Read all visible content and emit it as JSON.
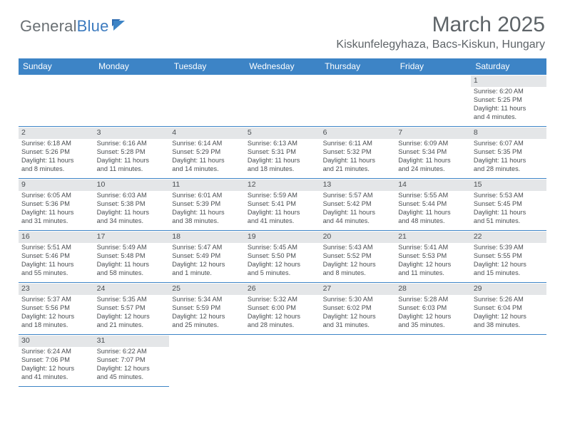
{
  "brand": {
    "part1": "General",
    "part2": "Blue"
  },
  "title": "March 2025",
  "location": "Kiskunfelegyhaza, Bacs-Kiskun, Hungary",
  "colors": {
    "header_bg": "#3d84c6",
    "header_text": "#ffffff",
    "daynum_bg": "#e4e6e8",
    "text": "#4a4e52",
    "title_text": "#5e6468",
    "logo_gray": "#6a7074",
    "logo_blue": "#3d7bbf",
    "border": "#3d84c6"
  },
  "day_headers": [
    "Sunday",
    "Monday",
    "Tuesday",
    "Wednesday",
    "Thursday",
    "Friday",
    "Saturday"
  ],
  "weeks": [
    [
      null,
      null,
      null,
      null,
      null,
      null,
      {
        "n": "1",
        "sr": "Sunrise: 6:20 AM",
        "ss": "Sunset: 5:25 PM",
        "d1": "Daylight: 11 hours",
        "d2": "and 4 minutes."
      }
    ],
    [
      {
        "n": "2",
        "sr": "Sunrise: 6:18 AM",
        "ss": "Sunset: 5:26 PM",
        "d1": "Daylight: 11 hours",
        "d2": "and 8 minutes."
      },
      {
        "n": "3",
        "sr": "Sunrise: 6:16 AM",
        "ss": "Sunset: 5:28 PM",
        "d1": "Daylight: 11 hours",
        "d2": "and 11 minutes."
      },
      {
        "n": "4",
        "sr": "Sunrise: 6:14 AM",
        "ss": "Sunset: 5:29 PM",
        "d1": "Daylight: 11 hours",
        "d2": "and 14 minutes."
      },
      {
        "n": "5",
        "sr": "Sunrise: 6:13 AM",
        "ss": "Sunset: 5:31 PM",
        "d1": "Daylight: 11 hours",
        "d2": "and 18 minutes."
      },
      {
        "n": "6",
        "sr": "Sunrise: 6:11 AM",
        "ss": "Sunset: 5:32 PM",
        "d1": "Daylight: 11 hours",
        "d2": "and 21 minutes."
      },
      {
        "n": "7",
        "sr": "Sunrise: 6:09 AM",
        "ss": "Sunset: 5:34 PM",
        "d1": "Daylight: 11 hours",
        "d2": "and 24 minutes."
      },
      {
        "n": "8",
        "sr": "Sunrise: 6:07 AM",
        "ss": "Sunset: 5:35 PM",
        "d1": "Daylight: 11 hours",
        "d2": "and 28 minutes."
      }
    ],
    [
      {
        "n": "9",
        "sr": "Sunrise: 6:05 AM",
        "ss": "Sunset: 5:36 PM",
        "d1": "Daylight: 11 hours",
        "d2": "and 31 minutes."
      },
      {
        "n": "10",
        "sr": "Sunrise: 6:03 AM",
        "ss": "Sunset: 5:38 PM",
        "d1": "Daylight: 11 hours",
        "d2": "and 34 minutes."
      },
      {
        "n": "11",
        "sr": "Sunrise: 6:01 AM",
        "ss": "Sunset: 5:39 PM",
        "d1": "Daylight: 11 hours",
        "d2": "and 38 minutes."
      },
      {
        "n": "12",
        "sr": "Sunrise: 5:59 AM",
        "ss": "Sunset: 5:41 PM",
        "d1": "Daylight: 11 hours",
        "d2": "and 41 minutes."
      },
      {
        "n": "13",
        "sr": "Sunrise: 5:57 AM",
        "ss": "Sunset: 5:42 PM",
        "d1": "Daylight: 11 hours",
        "d2": "and 44 minutes."
      },
      {
        "n": "14",
        "sr": "Sunrise: 5:55 AM",
        "ss": "Sunset: 5:44 PM",
        "d1": "Daylight: 11 hours",
        "d2": "and 48 minutes."
      },
      {
        "n": "15",
        "sr": "Sunrise: 5:53 AM",
        "ss": "Sunset: 5:45 PM",
        "d1": "Daylight: 11 hours",
        "d2": "and 51 minutes."
      }
    ],
    [
      {
        "n": "16",
        "sr": "Sunrise: 5:51 AM",
        "ss": "Sunset: 5:46 PM",
        "d1": "Daylight: 11 hours",
        "d2": "and 55 minutes."
      },
      {
        "n": "17",
        "sr": "Sunrise: 5:49 AM",
        "ss": "Sunset: 5:48 PM",
        "d1": "Daylight: 11 hours",
        "d2": "and 58 minutes."
      },
      {
        "n": "18",
        "sr": "Sunrise: 5:47 AM",
        "ss": "Sunset: 5:49 PM",
        "d1": "Daylight: 12 hours",
        "d2": "and 1 minute."
      },
      {
        "n": "19",
        "sr": "Sunrise: 5:45 AM",
        "ss": "Sunset: 5:50 PM",
        "d1": "Daylight: 12 hours",
        "d2": "and 5 minutes."
      },
      {
        "n": "20",
        "sr": "Sunrise: 5:43 AM",
        "ss": "Sunset: 5:52 PM",
        "d1": "Daylight: 12 hours",
        "d2": "and 8 minutes."
      },
      {
        "n": "21",
        "sr": "Sunrise: 5:41 AM",
        "ss": "Sunset: 5:53 PM",
        "d1": "Daylight: 12 hours",
        "d2": "and 11 minutes."
      },
      {
        "n": "22",
        "sr": "Sunrise: 5:39 AM",
        "ss": "Sunset: 5:55 PM",
        "d1": "Daylight: 12 hours",
        "d2": "and 15 minutes."
      }
    ],
    [
      {
        "n": "23",
        "sr": "Sunrise: 5:37 AM",
        "ss": "Sunset: 5:56 PM",
        "d1": "Daylight: 12 hours",
        "d2": "and 18 minutes."
      },
      {
        "n": "24",
        "sr": "Sunrise: 5:35 AM",
        "ss": "Sunset: 5:57 PM",
        "d1": "Daylight: 12 hours",
        "d2": "and 21 minutes."
      },
      {
        "n": "25",
        "sr": "Sunrise: 5:34 AM",
        "ss": "Sunset: 5:59 PM",
        "d1": "Daylight: 12 hours",
        "d2": "and 25 minutes."
      },
      {
        "n": "26",
        "sr": "Sunrise: 5:32 AM",
        "ss": "Sunset: 6:00 PM",
        "d1": "Daylight: 12 hours",
        "d2": "and 28 minutes."
      },
      {
        "n": "27",
        "sr": "Sunrise: 5:30 AM",
        "ss": "Sunset: 6:02 PM",
        "d1": "Daylight: 12 hours",
        "d2": "and 31 minutes."
      },
      {
        "n": "28",
        "sr": "Sunrise: 5:28 AM",
        "ss": "Sunset: 6:03 PM",
        "d1": "Daylight: 12 hours",
        "d2": "and 35 minutes."
      },
      {
        "n": "29",
        "sr": "Sunrise: 5:26 AM",
        "ss": "Sunset: 6:04 PM",
        "d1": "Daylight: 12 hours",
        "d2": "and 38 minutes."
      }
    ],
    [
      {
        "n": "30",
        "sr": "Sunrise: 6:24 AM",
        "ss": "Sunset: 7:06 PM",
        "d1": "Daylight: 12 hours",
        "d2": "and 41 minutes."
      },
      {
        "n": "31",
        "sr": "Sunrise: 6:22 AM",
        "ss": "Sunset: 7:07 PM",
        "d1": "Daylight: 12 hours",
        "d2": "and 45 minutes."
      },
      null,
      null,
      null,
      null,
      null
    ]
  ]
}
